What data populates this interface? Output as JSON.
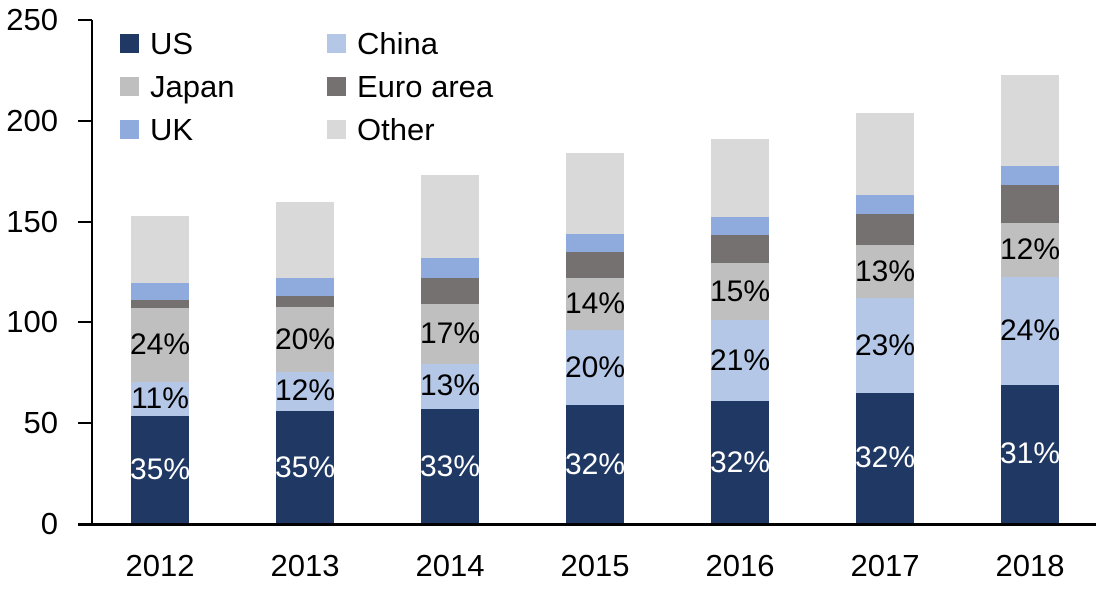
{
  "chart_data": {
    "type": "bar",
    "stacked": true,
    "title": "",
    "background": "#FFFFFF",
    "axis_color": "#000000",
    "grid": false,
    "categories": [
      "2012",
      "2013",
      "2014",
      "2015",
      "2016",
      "2017",
      "2018"
    ],
    "totals": [
      153,
      160,
      173,
      184,
      191,
      204,
      223
    ],
    "series": [
      {
        "name": "US",
        "color": "#1F3864",
        "values": [
          53.5,
          56,
          57,
          59,
          61,
          65,
          69
        ],
        "labels": [
          "35%",
          "35%",
          "33%",
          "32%",
          "32%",
          "32%",
          "31%"
        ],
        "label_color": "#FFFFFF"
      },
      {
        "name": "China",
        "color": "#B4C7E7",
        "values": [
          17,
          19.5,
          22.5,
          37,
          40,
          47,
          53.5
        ],
        "labels": [
          "11%",
          "12%",
          "13%",
          "20%",
          "21%",
          "23%",
          "24%"
        ],
        "label_color": "#000000"
      },
      {
        "name": "Japan",
        "color": "#BFBFBF",
        "values": [
          36.5,
          32,
          29.5,
          26,
          28.5,
          26.5,
          27
        ],
        "labels": [
          "24%",
          "20%",
          "17%",
          "14%",
          "15%",
          "13%",
          "12%"
        ],
        "label_color": "#000000"
      },
      {
        "name": "Euro area",
        "color": "#767171",
        "values": [
          4,
          5.5,
          13,
          13,
          14,
          15.5,
          18.5
        ],
        "labels": null,
        "label_color": null
      },
      {
        "name": "UK",
        "color": "#8FAADC",
        "values": [
          8.5,
          9,
          10,
          9,
          9,
          9,
          9.5
        ],
        "labels": null,
        "label_color": null
      },
      {
        "name": "Other",
        "color": "#D9D9D9",
        "values": [
          33.5,
          38,
          41,
          40,
          38.5,
          41,
          45.5
        ],
        "labels": null,
        "label_color": null
      }
    ],
    "y_axis": {
      "min": 0,
      "max": 250,
      "step": 50,
      "tick_labels": [
        "0",
        "50",
        "100",
        "150",
        "200",
        "250"
      ]
    },
    "x_axis": {
      "tick_labels": [
        "2012",
        "2013",
        "2014",
        "2015",
        "2016",
        "2017",
        "2018"
      ]
    },
    "legend": {
      "position": "top-left",
      "columns": 2,
      "items": [
        "US",
        "China",
        "Japan",
        "Euro area",
        "UK",
        "Other"
      ]
    }
  }
}
